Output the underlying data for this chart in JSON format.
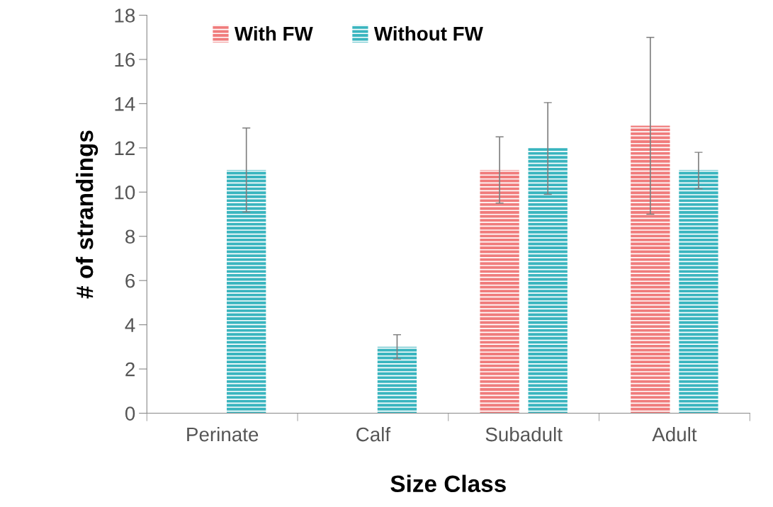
{
  "chart_data": {
    "type": "bar",
    "xlabel": "Size Class",
    "ylabel": "# of strandings",
    "categories": [
      "Perinate",
      "Calf",
      "Subadult",
      "Adult"
    ],
    "series": [
      {
        "name": "With FW",
        "color": "#f07c7c",
        "values": [
          null,
          null,
          11,
          13
        ],
        "errors": [
          null,
          null,
          [
            9.5,
            12.5
          ],
          [
            9,
            17
          ]
        ]
      },
      {
        "name": "Without FW",
        "color": "#3ab5bf",
        "values": [
          11,
          3,
          12,
          11
        ],
        "errors": [
          [
            9.1,
            12.9
          ],
          [
            2.45,
            3.55
          ],
          [
            9.9,
            14.05
          ],
          [
            10.15,
            11.8
          ]
        ]
      }
    ],
    "ylim": [
      0,
      18
    ],
    "yticks": [
      0,
      2,
      4,
      6,
      8,
      10,
      12,
      14,
      16,
      18
    ],
    "grid": false,
    "legend": "top left"
  }
}
